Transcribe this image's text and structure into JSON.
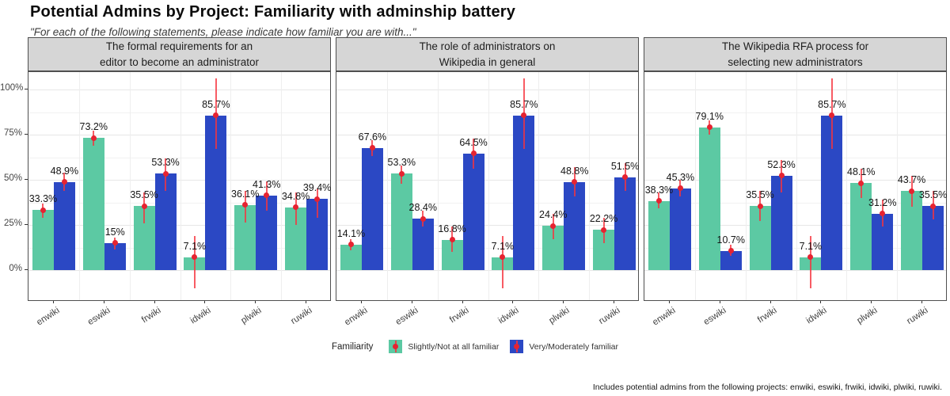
{
  "header": {
    "title": "Potential Admins by Project: Familiarity with adminship battery",
    "subtitle": "\"For each of the following statements, please indicate how familiar you are with...\""
  },
  "caption": "Includes potential admins from the following projects: enwiki, eswiki, frwiki, idwiki, plwiki, ruwiki.",
  "chart_data": {
    "type": "bar",
    "title": "Potential Admins by Project: Familiarity with adminship battery",
    "subtitle": "\"For each of the following statements, please indicate how familiar you are with...\"",
    "caption": "Includes potential admins from the following projects: enwiki, eswiki, frwiki, idwiki, plwiki, ruwiki.",
    "categories": [
      "enwiki",
      "eswiki",
      "frwiki",
      "idwiki",
      "plwiki",
      "ruwiki"
    ],
    "y_ticks": [
      0,
      25,
      50,
      75,
      100
    ],
    "y_tick_labels": [
      "0%",
      "25%",
      "50%",
      "75%",
      "100%"
    ],
    "ylim": [
      -12,
      110
    ],
    "grid": true,
    "legend": {
      "title": "Familiarity",
      "position": "bottom",
      "entries": [
        {
          "label": "Slightly/Not at all familiar",
          "color": "#5cc9a3"
        },
        {
          "label": "Very/Moderately familiar",
          "color": "#2b48c4"
        }
      ]
    },
    "error_color": "#f6333d",
    "panels": [
      {
        "title": "The formal requirements for an\neditor to become an administrator",
        "series": [
          {
            "name": "Slightly/Not at all familiar",
            "color": "#5cc9a3",
            "values": [
              33.3,
              73.2,
              35.5,
              7.1,
              36.1,
              34.8
            ],
            "error_lo": [
              29,
              69,
              26,
              -10,
              26.5,
              25
            ],
            "error_hi": [
              37,
              77,
              43,
              19,
              44,
              43
            ]
          },
          {
            "name": "Very/Moderately familiar",
            "color": "#2b48c4",
            "values": [
              48.9,
              15,
              53.3,
              85.7,
              41.3,
              39.4
            ],
            "error_lo": [
              44,
              11.5,
              44,
              67,
              33,
              29
            ],
            "error_hi": [
              54,
              18,
              62,
              106,
              49,
              45
            ]
          }
        ]
      },
      {
        "title": "The role of administrators on\nWikipedia in general",
        "series": [
          {
            "name": "Slightly/Not at all familiar",
            "color": "#5cc9a3",
            "values": [
              14.1,
              53.3,
              16.8,
              7.1,
              24.4,
              22.2
            ],
            "error_lo": [
              11,
              48,
              10,
              -10,
              17,
              15
            ],
            "error_hi": [
              17,
              58,
              24,
              19,
              31,
              29
            ]
          },
          {
            "name": "Very/Moderately familiar",
            "color": "#2b48c4",
            "values": [
              67.6,
              28.4,
              64.5,
              85.7,
              48.8,
              51.5
            ],
            "error_lo": [
              63,
              24,
              56,
              67,
              41,
              44
            ],
            "error_hi": [
              72,
              33,
              73,
              106,
              57,
              59
            ]
          }
        ]
      },
      {
        "title": "The Wikipedia RFA process for\nselecting new administrators",
        "series": [
          {
            "name": "Slightly/Not at all familiar",
            "color": "#5cc9a3",
            "values": [
              38.3,
              79.1,
              35.5,
              7.1,
              48.1,
              43.7
            ],
            "error_lo": [
              34,
              75,
              27,
              -10,
              40,
              35
            ],
            "error_hi": [
              43,
              83,
              44,
              19,
              56,
              52
            ]
          },
          {
            "name": "Very/Moderately familiar",
            "color": "#2b48c4",
            "values": [
              45.3,
              10.7,
              52.3,
              85.7,
              31.2,
              35.5
            ],
            "error_lo": [
              41,
              8,
              43,
              67,
              24,
              28
            ],
            "error_hi": [
              50,
              14,
              61,
              106,
              39,
              44
            ]
          }
        ]
      }
    ]
  }
}
